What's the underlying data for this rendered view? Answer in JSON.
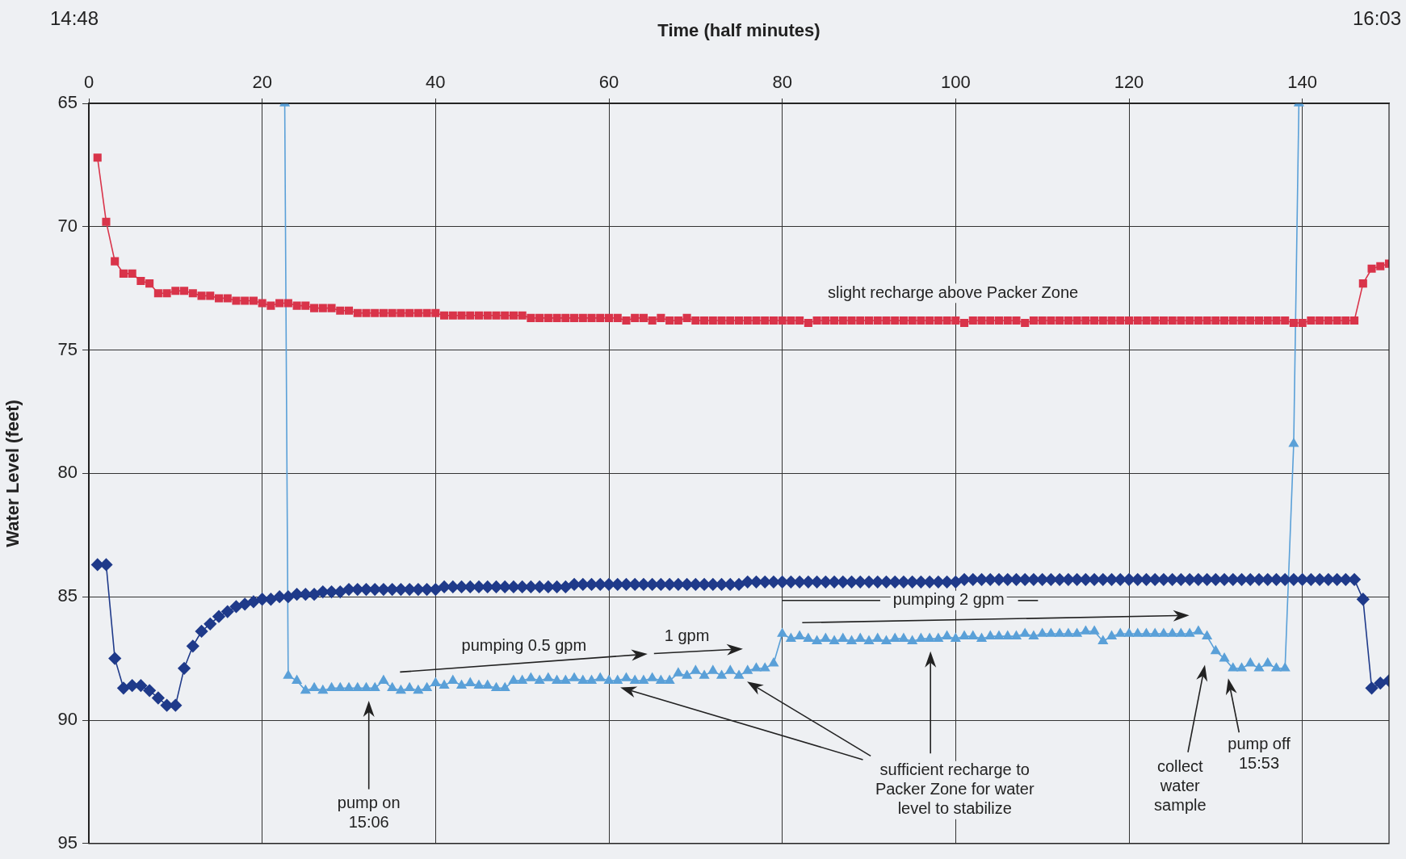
{
  "chart_data": {
    "type": "line",
    "xlabel": "Time (half minutes)",
    "ylabel": "Water Level (feet)",
    "x": [
      1,
      2,
      3,
      4,
      5,
      6,
      7,
      8,
      9,
      10,
      11,
      12,
      13,
      14,
      15,
      16,
      17,
      18,
      19,
      20,
      21,
      22,
      23,
      24,
      25,
      26,
      27,
      28,
      29,
      30,
      31,
      32,
      33,
      34,
      35,
      36,
      37,
      38,
      39,
      40,
      41,
      42,
      43,
      44,
      45,
      46,
      47,
      48,
      49,
      50,
      51,
      52,
      53,
      54,
      55,
      56,
      57,
      58,
      59,
      60,
      61,
      62,
      63,
      64,
      65,
      66,
      67,
      68,
      69,
      70,
      71,
      72,
      73,
      74,
      75,
      76,
      77,
      78,
      79,
      80,
      81,
      82,
      83,
      84,
      85,
      86,
      87,
      88,
      89,
      90,
      91,
      92,
      93,
      94,
      95,
      96,
      97,
      98,
      99,
      100,
      101,
      102,
      103,
      104,
      105,
      106,
      107,
      108,
      109,
      110,
      111,
      112,
      113,
      114,
      115,
      116,
      117,
      118,
      119,
      120,
      121,
      122,
      123,
      124,
      125,
      126,
      127,
      128,
      129,
      130,
      131,
      132,
      133,
      134,
      135,
      136,
      137,
      138,
      139,
      140,
      141,
      142,
      143,
      144,
      145,
      146,
      147,
      148,
      149,
      150
    ],
    "series": [
      {
        "color": "#d9344a",
        "marker": "square",
        "values": [
          67.2,
          69.8,
          71.4,
          71.9,
          71.9,
          72.2,
          72.3,
          72.7,
          72.7,
          72.6,
          72.6,
          72.7,
          72.8,
          72.8,
          72.9,
          72.9,
          73.0,
          73.0,
          73.0,
          73.1,
          73.2,
          73.1,
          73.1,
          73.2,
          73.2,
          73.3,
          73.3,
          73.3,
          73.4,
          73.4,
          73.5,
          73.5,
          73.5,
          73.5,
          73.5,
          73.5,
          73.5,
          73.5,
          73.5,
          73.5,
          73.6,
          73.6,
          73.6,
          73.6,
          73.6,
          73.6,
          73.6,
          73.6,
          73.6,
          73.6,
          73.7,
          73.7,
          73.7,
          73.7,
          73.7,
          73.7,
          73.7,
          73.7,
          73.7,
          73.7,
          73.7,
          73.8,
          73.7,
          73.7,
          73.8,
          73.7,
          73.8,
          73.8,
          73.7,
          73.8,
          73.8,
          73.8,
          73.8,
          73.8,
          73.8,
          73.8,
          73.8,
          73.8,
          73.8,
          73.8,
          73.8,
          73.8,
          73.9,
          73.8,
          73.8,
          73.8,
          73.8,
          73.8,
          73.8,
          73.8,
          73.8,
          73.8,
          73.8,
          73.8,
          73.8,
          73.8,
          73.8,
          73.8,
          73.8,
          73.8,
          73.9,
          73.8,
          73.8,
          73.8,
          73.8,
          73.8,
          73.8,
          73.9,
          73.8,
          73.8,
          73.8,
          73.8,
          73.8,
          73.8,
          73.8,
          73.8,
          73.8,
          73.8,
          73.8,
          73.8,
          73.8,
          73.8,
          73.8,
          73.8,
          73.8,
          73.8,
          73.8,
          73.8,
          73.8,
          73.8,
          73.8,
          73.8,
          73.8,
          73.8,
          73.8,
          73.8,
          73.8,
          73.8,
          73.9,
          73.9,
          73.8,
          73.8,
          73.8,
          73.8,
          73.8,
          73.8,
          72.3,
          71.7,
          71.6,
          71.5
        ]
      },
      {
        "color": "#1f3a8a",
        "marker": "diamond",
        "values": [
          83.7,
          83.7,
          87.5,
          88.7,
          88.6,
          88.6,
          88.8,
          89.1,
          89.4,
          89.4,
          87.9,
          87.0,
          86.4,
          86.1,
          85.8,
          85.6,
          85.4,
          85.3,
          85.2,
          85.1,
          85.1,
          85.0,
          85.0,
          84.9,
          84.9,
          84.9,
          84.8,
          84.8,
          84.8,
          84.7,
          84.7,
          84.7,
          84.7,
          84.7,
          84.7,
          84.7,
          84.7,
          84.7,
          84.7,
          84.7,
          84.6,
          84.6,
          84.6,
          84.6,
          84.6,
          84.6,
          84.6,
          84.6,
          84.6,
          84.6,
          84.6,
          84.6,
          84.6,
          84.6,
          84.6,
          84.5,
          84.5,
          84.5,
          84.5,
          84.5,
          84.5,
          84.5,
          84.5,
          84.5,
          84.5,
          84.5,
          84.5,
          84.5,
          84.5,
          84.5,
          84.5,
          84.5,
          84.5,
          84.5,
          84.5,
          84.4,
          84.4,
          84.4,
          84.4,
          84.4,
          84.4,
          84.4,
          84.4,
          84.4,
          84.4,
          84.4,
          84.4,
          84.4,
          84.4,
          84.4,
          84.4,
          84.4,
          84.4,
          84.4,
          84.4,
          84.4,
          84.4,
          84.4,
          84.4,
          84.4,
          84.3,
          84.3,
          84.3,
          84.3,
          84.3,
          84.3,
          84.3,
          84.3,
          84.3,
          84.3,
          84.3,
          84.3,
          84.3,
          84.3,
          84.3,
          84.3,
          84.3,
          84.3,
          84.3,
          84.3,
          84.3,
          84.3,
          84.3,
          84.3,
          84.3,
          84.3,
          84.3,
          84.3,
          84.3,
          84.3,
          84.3,
          84.3,
          84.3,
          84.3,
          84.3,
          84.3,
          84.3,
          84.3,
          84.3,
          84.3,
          84.3,
          84.3,
          84.3,
          84.3,
          84.3,
          84.3,
          85.1,
          88.7,
          88.5,
          88.4
        ]
      },
      {
        "color": "#5aa0d8",
        "marker": "triangle",
        "x": [
          22.6,
          23,
          24,
          25,
          26,
          27,
          28,
          29,
          30,
          31,
          32,
          33,
          34,
          35,
          36,
          37,
          38,
          39,
          40,
          41,
          42,
          43,
          44,
          45,
          46,
          47,
          48,
          49,
          50,
          51,
          52,
          53,
          54,
          55,
          56,
          57,
          58,
          59,
          60,
          61,
          62,
          63,
          64,
          65,
          66,
          67,
          68,
          69,
          70,
          71,
          72,
          73,
          74,
          75,
          76,
          77,
          78,
          79,
          80,
          81,
          82,
          83,
          84,
          85,
          86,
          87,
          88,
          89,
          90,
          91,
          92,
          93,
          94,
          95,
          96,
          97,
          98,
          99,
          100,
          101,
          102,
          103,
          104,
          105,
          106,
          107,
          108,
          109,
          110,
          111,
          112,
          113,
          114,
          115,
          116,
          117,
          118,
          119,
          120,
          121,
          122,
          123,
          124,
          125,
          126,
          127,
          128,
          129,
          130,
          131,
          132,
          133,
          134,
          135,
          136,
          137,
          138,
          139,
          139.6
        ],
        "values": [
          65,
          88.2,
          88.4,
          88.8,
          88.7,
          88.8,
          88.7,
          88.7,
          88.7,
          88.7,
          88.7,
          88.7,
          88.4,
          88.7,
          88.8,
          88.7,
          88.8,
          88.7,
          88.5,
          88.6,
          88.4,
          88.6,
          88.5,
          88.6,
          88.6,
          88.7,
          88.7,
          88.4,
          88.4,
          88.3,
          88.4,
          88.3,
          88.4,
          88.4,
          88.3,
          88.4,
          88.4,
          88.3,
          88.4,
          88.4,
          88.3,
          88.4,
          88.4,
          88.3,
          88.4,
          88.4,
          88.1,
          88.2,
          88.0,
          88.2,
          88.0,
          88.2,
          88.0,
          88.2,
          88.0,
          87.9,
          87.9,
          87.7,
          86.5,
          86.7,
          86.6,
          86.7,
          86.8,
          86.7,
          86.8,
          86.7,
          86.8,
          86.7,
          86.8,
          86.7,
          86.8,
          86.7,
          86.7,
          86.8,
          86.7,
          86.7,
          86.7,
          86.6,
          86.7,
          86.6,
          86.6,
          86.7,
          86.6,
          86.6,
          86.6,
          86.6,
          86.5,
          86.6,
          86.5,
          86.5,
          86.5,
          86.5,
          86.5,
          86.4,
          86.4,
          86.8,
          86.6,
          86.5,
          86.5,
          86.5,
          86.5,
          86.5,
          86.5,
          86.5,
          86.5,
          86.5,
          86.4,
          86.6,
          87.2,
          87.5,
          87.9,
          87.9,
          87.7,
          87.9,
          87.7,
          87.9,
          87.9,
          78.8,
          65
        ]
      }
    ],
    "xlim": [
      0,
      150
    ],
    "xticks": [
      0,
      20,
      40,
      60,
      80,
      100,
      120,
      140
    ],
    "ylim": [
      95,
      65
    ],
    "yticks": [
      65,
      70,
      75,
      80,
      85,
      90,
      95
    ],
    "grid": true,
    "line_style": "solid",
    "annotations": [
      "14:48",
      "16:03",
      "slight recharge above Packer Zone",
      "pumping 0.5 gpm",
      "1 gpm",
      "pumping 2 gpm",
      "pump on\n15:06",
      "sufficient recharge to\nPacker Zone for water\nlevel to stabilize",
      "collect\nwater\nsample",
      "pump off\n15:53"
    ]
  }
}
